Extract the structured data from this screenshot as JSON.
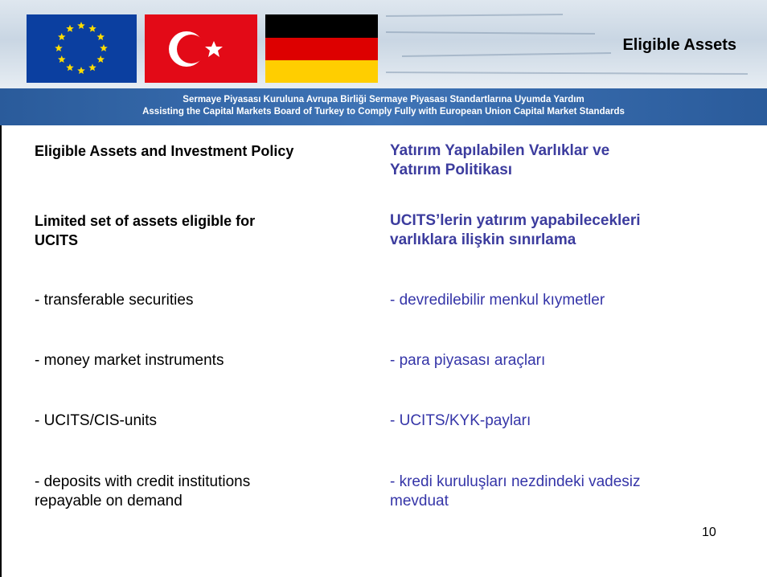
{
  "header": {
    "title": "Eligible Assets",
    "subtitle_lines": [
      "Sermaye Piyasası Kuruluna Avrupa Birliği Sermaye Piyasası Standartlarına Uyumda Yardım",
      "Assisting the Capital Markets Board of Turkey to Comply Fully with European Union Capital Market Standards"
    ]
  },
  "rows": [
    {
      "left": [
        "Eligible Assets and Investment Policy"
      ],
      "right": [
        "Yatırım Yapılabilen Varlıklar ve",
        "Yatırım Politikası"
      ]
    },
    {
      "left": [
        "Limited set of assets eligible for",
        "UCITS"
      ],
      "right": [
        "UCITS’lerin yatırım yapabilecekleri",
        "varlıklara ilişkin sınırlama"
      ]
    },
    {
      "left": [
        "- transferable securities"
      ],
      "right": [
        "- devredilebilir menkul kıymetler"
      ]
    },
    {
      "left": [
        "- money market instruments"
      ],
      "right": [
        "- para piyasası araçları"
      ]
    },
    {
      "left": [
        "- UCITS/CIS-units"
      ],
      "right": [
        "- UCITS/KYK-payları"
      ]
    },
    {
      "left": [
        "- deposits with credit institutions",
        "repayable on demand"
      ],
      "right": [
        "- kredi kuruluşları nezdindeki vadesiz",
        "mevduat"
      ]
    }
  ],
  "page_number": "10"
}
